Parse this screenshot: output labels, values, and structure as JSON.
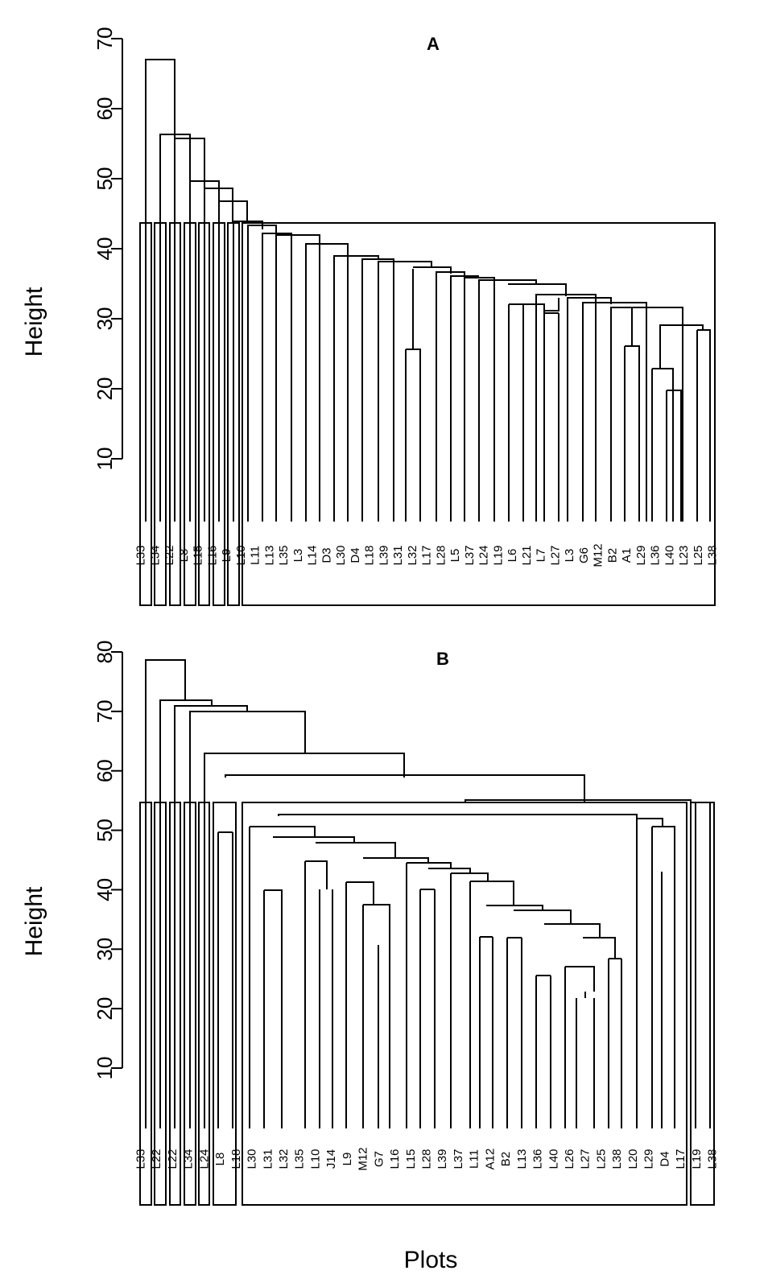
{
  "chart_data": [
    {
      "type": "dendrogram",
      "panel_label": "A",
      "ylabel": "Height",
      "yticks": [
        10,
        20,
        30,
        40,
        50,
        60,
        70
      ],
      "ylim": [
        10,
        70
      ],
      "cut_height": 44,
      "cluster_boxes": 7,
      "leaf_labels": [
        "L33",
        "L34",
        "L22",
        "L8",
        "L15",
        "L16",
        "L9",
        "L10",
        "L11",
        "L13",
        "L35",
        "L3",
        "L14",
        "D3",
        "L30",
        "D4",
        "L18",
        "L39",
        "L31",
        "L32",
        "L17",
        "L28",
        "L5",
        "L37",
        "L24",
        "L19",
        "L6",
        "L21",
        "L7",
        "L27",
        "L3",
        "G6",
        "M12",
        "B2",
        "A1",
        "L29",
        "L36",
        "L40",
        "L23",
        "L25",
        "L38"
      ],
      "merges": [
        {
          "height": 67.2
        },
        {
          "height": 56.5
        },
        {
          "height": 56.1
        },
        {
          "height": 50.0
        },
        {
          "height": 48.8
        },
        {
          "height": 46.9
        },
        {
          "height": 44.0
        },
        {
          "height": 43.5
        },
        {
          "height": 42.3
        },
        {
          "height": 42.0
        },
        {
          "height": 40.6
        },
        {
          "height": 39.0
        },
        {
          "height": 38.5
        },
        {
          "height": 38.3
        },
        {
          "height": 37.5
        },
        {
          "height": 36.5
        },
        {
          "height": 36.0
        },
        {
          "height": 35.6
        },
        {
          "height": 35.2
        },
        {
          "height": 34.7
        },
        {
          "height": 33.3
        },
        {
          "height": 32.6
        },
        {
          "height": 32.2
        },
        {
          "height": 31.5
        },
        {
          "height": 29.0
        },
        {
          "height": 28.5
        },
        {
          "height": 26.2
        },
        {
          "height": 25.6
        },
        {
          "height": 23.0
        },
        {
          "height": 19.8
        }
      ]
    },
    {
      "type": "dendrogram",
      "panel_label": "B",
      "xlabel": "Plots",
      "ylabel": "Height",
      "yticks": [
        10,
        20,
        30,
        40,
        50,
        60,
        70,
        80
      ],
      "ylim": [
        10,
        80
      ],
      "cut_height": 55,
      "cluster_boxes": 8,
      "leaf_labels": [
        "L33",
        "L22",
        "L22",
        "L34",
        "L24",
        "L8",
        "L18",
        "L30",
        "L31",
        "L32",
        "L35",
        "L10",
        "J14",
        "L9",
        "M12",
        "G7",
        "L16",
        "L15",
        "L28",
        "L39",
        "L37",
        "L11",
        "A12",
        "B2",
        "L13",
        "L36",
        "L40",
        "L26",
        "L27",
        "L25",
        "L38",
        "L20",
        "L29",
        "D4",
        "L17",
        "L19",
        "L38"
      ],
      "merges": [
        {
          "height": 78.8
        },
        {
          "height": 71.8
        },
        {
          "height": 71.0
        },
        {
          "height": 70.0
        },
        {
          "height": 63.0
        },
        {
          "height": 59.0
        },
        {
          "height": 55.0
        },
        {
          "height": 52.5
        },
        {
          "height": 52.0
        },
        {
          "height": 50.8
        },
        {
          "height": 49.7
        },
        {
          "height": 49.0
        },
        {
          "height": 48.0
        },
        {
          "height": 45.5
        },
        {
          "height": 45.0
        },
        {
          "height": 44.8
        },
        {
          "height": 43.5
        },
        {
          "height": 43.0
        },
        {
          "height": 42.5
        },
        {
          "height": 41.5
        },
        {
          "height": 40.5
        },
        {
          "height": 40.0
        },
        {
          "height": 38.0
        },
        {
          "height": 37.5
        },
        {
          "height": 37.0
        },
        {
          "height": 34.5
        },
        {
          "height": 32.5
        },
        {
          "height": 32.0
        },
        {
          "height": 31.0
        },
        {
          "height": 28.5
        },
        {
          "height": 27.0
        },
        {
          "height": 26.0
        },
        {
          "height": 25.5
        },
        {
          "height": 19.8
        }
      ]
    }
  ]
}
